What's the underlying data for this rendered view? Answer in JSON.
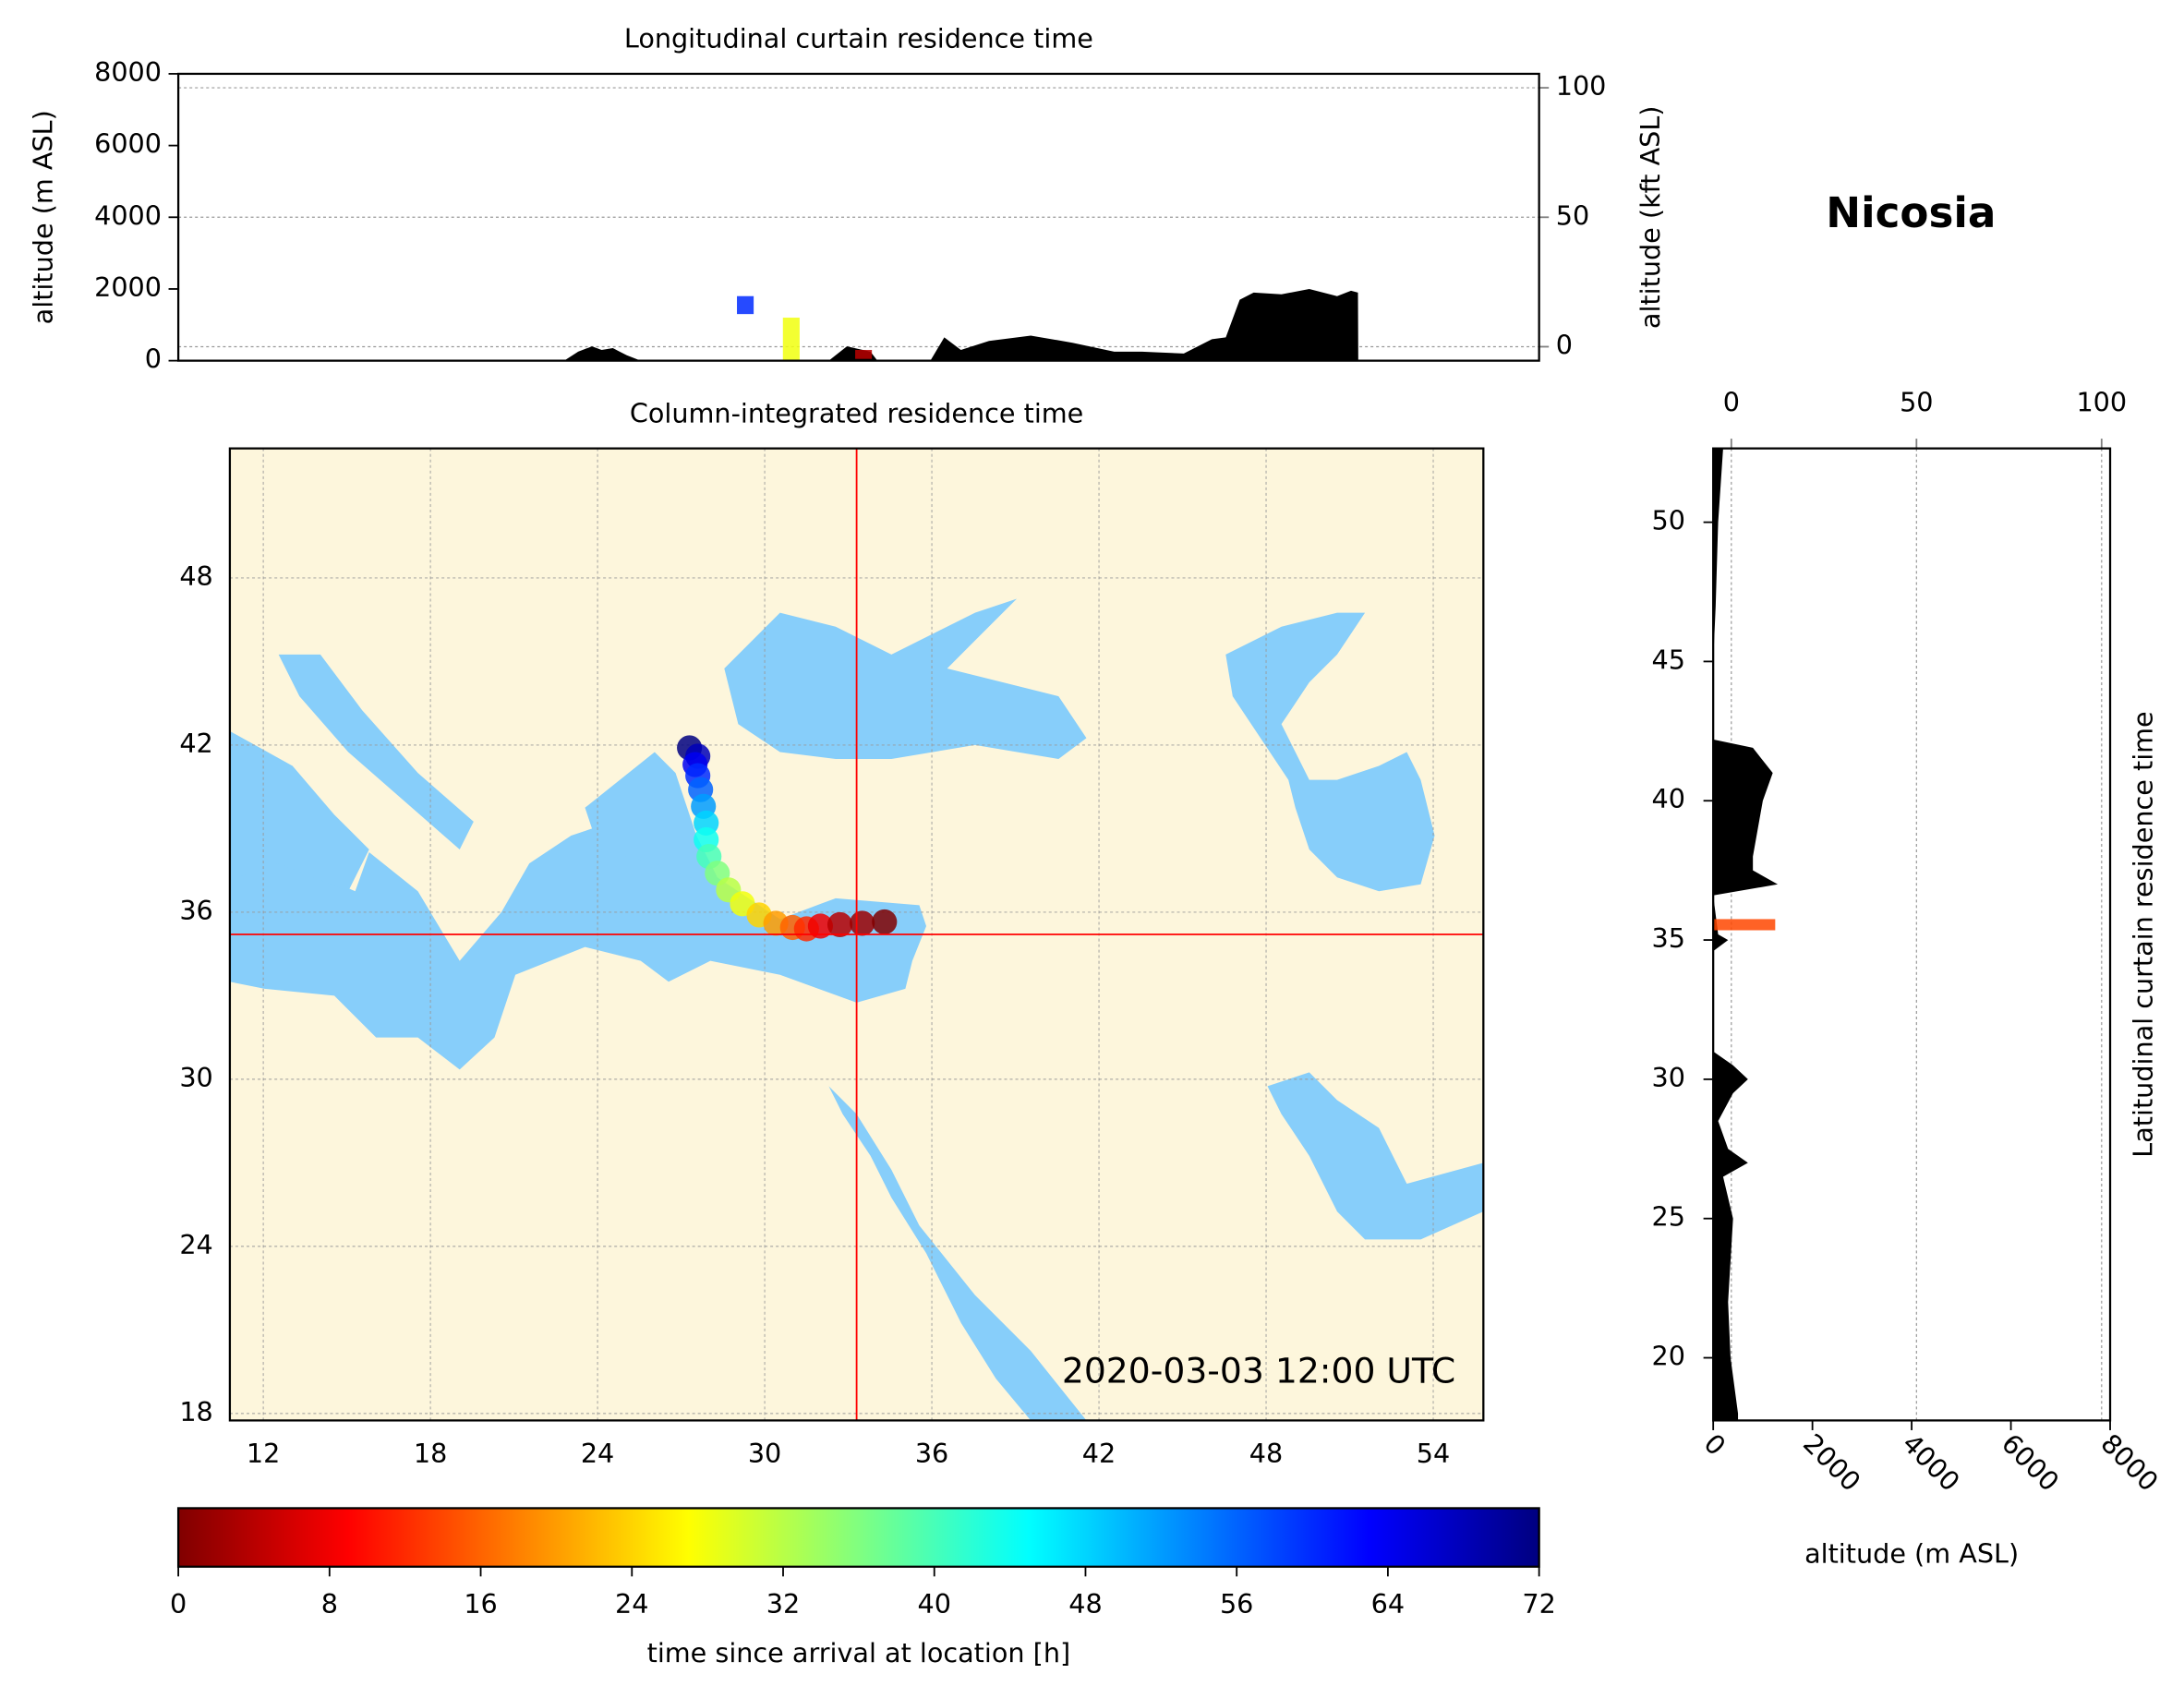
{
  "title": "Nicosia",
  "chart_data": [
    {
      "type": "area",
      "title": "Longitudinal curtain residence time",
      "ylabel": "altitude (m ASL)",
      "y2label": "altitude (kft ASL)",
      "xlim": [
        10.8,
        55.8
      ],
      "ylim": [
        0,
        8000
      ],
      "yticks": [
        0,
        2000,
        4000,
        6000,
        8000
      ],
      "y2lim": [
        -5.4,
        105.4
      ],
      "y2ticks": [
        0,
        50,
        100
      ],
      "grid": true,
      "color": "#000000",
      "x": [
        23.56,
        24.02,
        24.48,
        24.8,
        25.17,
        25.63,
        26.09,
        32.31,
        32.91,
        33.69,
        33.92,
        35.67,
        36.13,
        36.68,
        37.61,
        38.99,
        40.37,
        41.75,
        42.67,
        44.05,
        44.98,
        45.44,
        45.9,
        46.36,
        47.28,
        48.2,
        49.12,
        49.58,
        49.81,
        49.82
      ],
      "values": [
        0,
        250,
        400,
        300,
        350,
        150,
        0,
        0,
        400,
        250,
        0,
        0,
        650,
        300,
        550,
        700,
        500,
        250,
        250,
        200,
        600,
        650,
        1700,
        1900,
        1850,
        2000,
        1800,
        1950,
        1900,
        0
      ],
      "plume": {
        "x": [
          29.55,
          31.07,
          33.46
        ],
        "low": [
          1300,
          0,
          50
        ],
        "high": [
          1800,
          1200,
          300
        ],
        "hours": [
          60,
          28,
          4
        ]
      }
    },
    {
      "type": "map",
      "title": "Column-integrated residence time",
      "xlim": [
        10.8,
        55.8
      ],
      "ylim": [
        17.75,
        52.65
      ],
      "xticks": [
        12,
        18,
        24,
        30,
        36,
        42,
        48,
        54
      ],
      "yticks": [
        18,
        24,
        30,
        36,
        42,
        48
      ],
      "grid": true,
      "land_color": "#fdf6dc",
      "sea_color": "#87cefa",
      "marker": {
        "x": 33.3,
        "y": 35.2,
        "color": "#ff0000"
      },
      "annotation": "2020-03-03 12:00 UTC",
      "track": {
        "x": [
          34.3,
          33.5,
          32.7,
          32.0,
          31.5,
          31.0,
          30.4,
          29.8,
          29.2,
          28.7,
          28.3,
          28.0,
          27.9,
          27.9,
          27.8,
          27.7,
          27.6,
          27.5,
          27.6,
          27.3
        ],
        "y": [
          35.65,
          35.6,
          35.55,
          35.5,
          35.4,
          35.45,
          35.6,
          35.9,
          36.3,
          36.8,
          37.4,
          38.0,
          38.6,
          39.2,
          39.8,
          40.4,
          40.9,
          41.3,
          41.6,
          41.9
        ],
        "values": [
          0,
          2,
          4,
          8,
          12,
          16,
          20,
          24,
          28,
          32,
          36,
          40,
          44,
          48,
          52,
          56,
          60,
          64,
          68,
          72
        ]
      }
    },
    {
      "type": "area_h",
      "ylabel": "Latitudinal curtain residence time",
      "xlabel": "altitude (m ASL)",
      "xlim": [
        0,
        8000
      ],
      "xticks": [
        0,
        2000,
        4000,
        6000,
        8000
      ],
      "x2lim": [
        -4.9,
        102.3
      ],
      "x2ticks": [
        0,
        50,
        100
      ],
      "ylim": [
        17.75,
        52.65
      ],
      "yticks": [
        20,
        25,
        30,
        35,
        40,
        45,
        50
      ],
      "grid": true,
      "color": "#000000",
      "y": [
        52.65,
        50,
        47,
        45,
        42.2,
        41.9,
        41,
        40.5,
        40,
        39,
        38,
        37.5,
        37,
        36.6,
        35.2,
        35,
        34.6,
        31,
        30.5,
        30,
        29.5,
        28.5,
        27.5,
        27,
        26.5,
        25,
        22,
        20,
        18,
        17.75
      ],
      "values": [
        200,
        100,
        50,
        0,
        0,
        800,
        1200,
        1100,
        1000,
        900,
        800,
        800,
        1300,
        0,
        100,
        300,
        0,
        0,
        400,
        700,
        400,
        100,
        300,
        700,
        200,
        400,
        300,
        350,
        500,
        500
      ],
      "plume": {
        "y": [
          35.55
        ],
        "low": [
          0
        ],
        "high": [
          1250
        ],
        "hours": [
          14
        ]
      }
    },
    {
      "type": "colorbar",
      "label": "time since arrival at location [h]",
      "colormap": "jet_r",
      "clim": [
        0,
        72
      ],
      "ticks": [
        0,
        8,
        16,
        24,
        32,
        40,
        48,
        56,
        64,
        72
      ]
    }
  ]
}
